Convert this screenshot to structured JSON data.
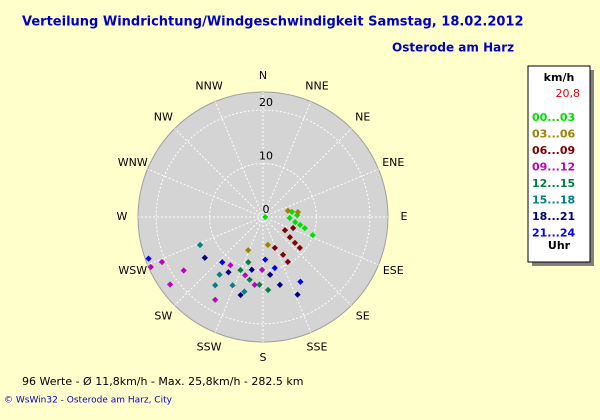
{
  "chart_data": {
    "type": "polar_scatter",
    "title": "Verteilung Windrichtung/Windgeschwindigkeit  Samstag, 18.02.2012",
    "subtitle": "Osterode am Harz",
    "directions": [
      "N",
      "NNE",
      "NE",
      "ENE",
      "E",
      "ESE",
      "SE",
      "SSE",
      "S",
      "SSW",
      "SW",
      "WSW",
      "W",
      "WNW",
      "NW",
      "NNW"
    ],
    "rlim": [
      0,
      23.4
    ],
    "rticks": [
      0,
      10,
      20
    ],
    "grid": true,
    "legend_title": "km/h",
    "legend_value": "20,8",
    "legend_footer": "Uhr",
    "series": [
      {
        "name": "00...03",
        "color": "#00e000",
        "x": [
          90,
          92,
          99,
          102,
          105,
          110,
          87,
          80
        ],
        "values": [
          0.4,
          5.0,
          6.1,
          7.1,
          8.1,
          9.9,
          6.4,
          5.5
        ]
      },
      {
        "name": "03...06",
        "color": "#a08000",
        "x": [
          76,
          82,
          204,
          170
        ],
        "values": [
          4.8,
          6.6,
          6.8,
          5.3
        ]
      },
      {
        "name": "06...09",
        "color": "#800000",
        "x": [
          121,
          127,
          129,
          130,
          152,
          110,
          151,
          159
        ],
        "values": [
          4.8,
          6.3,
          7.7,
          9.0,
          8.0,
          6.0,
          9.6,
          6.2
        ]
      },
      {
        "name": "09...12",
        "color": "#c000c0",
        "x": [
          181,
          197,
          210,
          214,
          187,
          246,
          234,
          236,
          246
        ],
        "values": [
          9.9,
          11.4,
          17.9,
          10.9,
          12.8,
          23.0,
          21.5,
          17.9,
          20.7
        ]
      },
      {
        "name": "12...15",
        "color": "#008040",
        "x": [
          192,
          183,
          203,
          176,
          198
        ],
        "values": [
          12.0,
          12.7,
          10.8,
          13.7,
          8.9
        ]
      },
      {
        "name": "15...18",
        "color": "#008080",
        "x": [
          246,
          217,
          204,
          215,
          194
        ],
        "values": [
          12.9,
          13.5,
          14.0,
          15.6,
          14.4
        ]
      },
      {
        "name": "18...21",
        "color": "#000080",
        "x": [
          235,
          212,
          192,
          173,
          156,
          166,
          196
        ],
        "values": [
          13.3,
          12.2,
          10.1,
          10.9,
          15.9,
          13.1,
          15.2
        ]
      },
      {
        "name": "21...24",
        "color": "#0000ff",
        "x": [
          250,
          222,
          177,
          167,
          150
        ],
        "values": [
          22.8,
          11.4,
          8.0,
          9.8,
          14.0
        ]
      }
    ],
    "footer": "96 Werte  -  Ø 11,8km/h  -  Max. 25,8km/h  -  282.5 km",
    "credit": "© WsWin32  -  Osterode am Harz, City"
  }
}
